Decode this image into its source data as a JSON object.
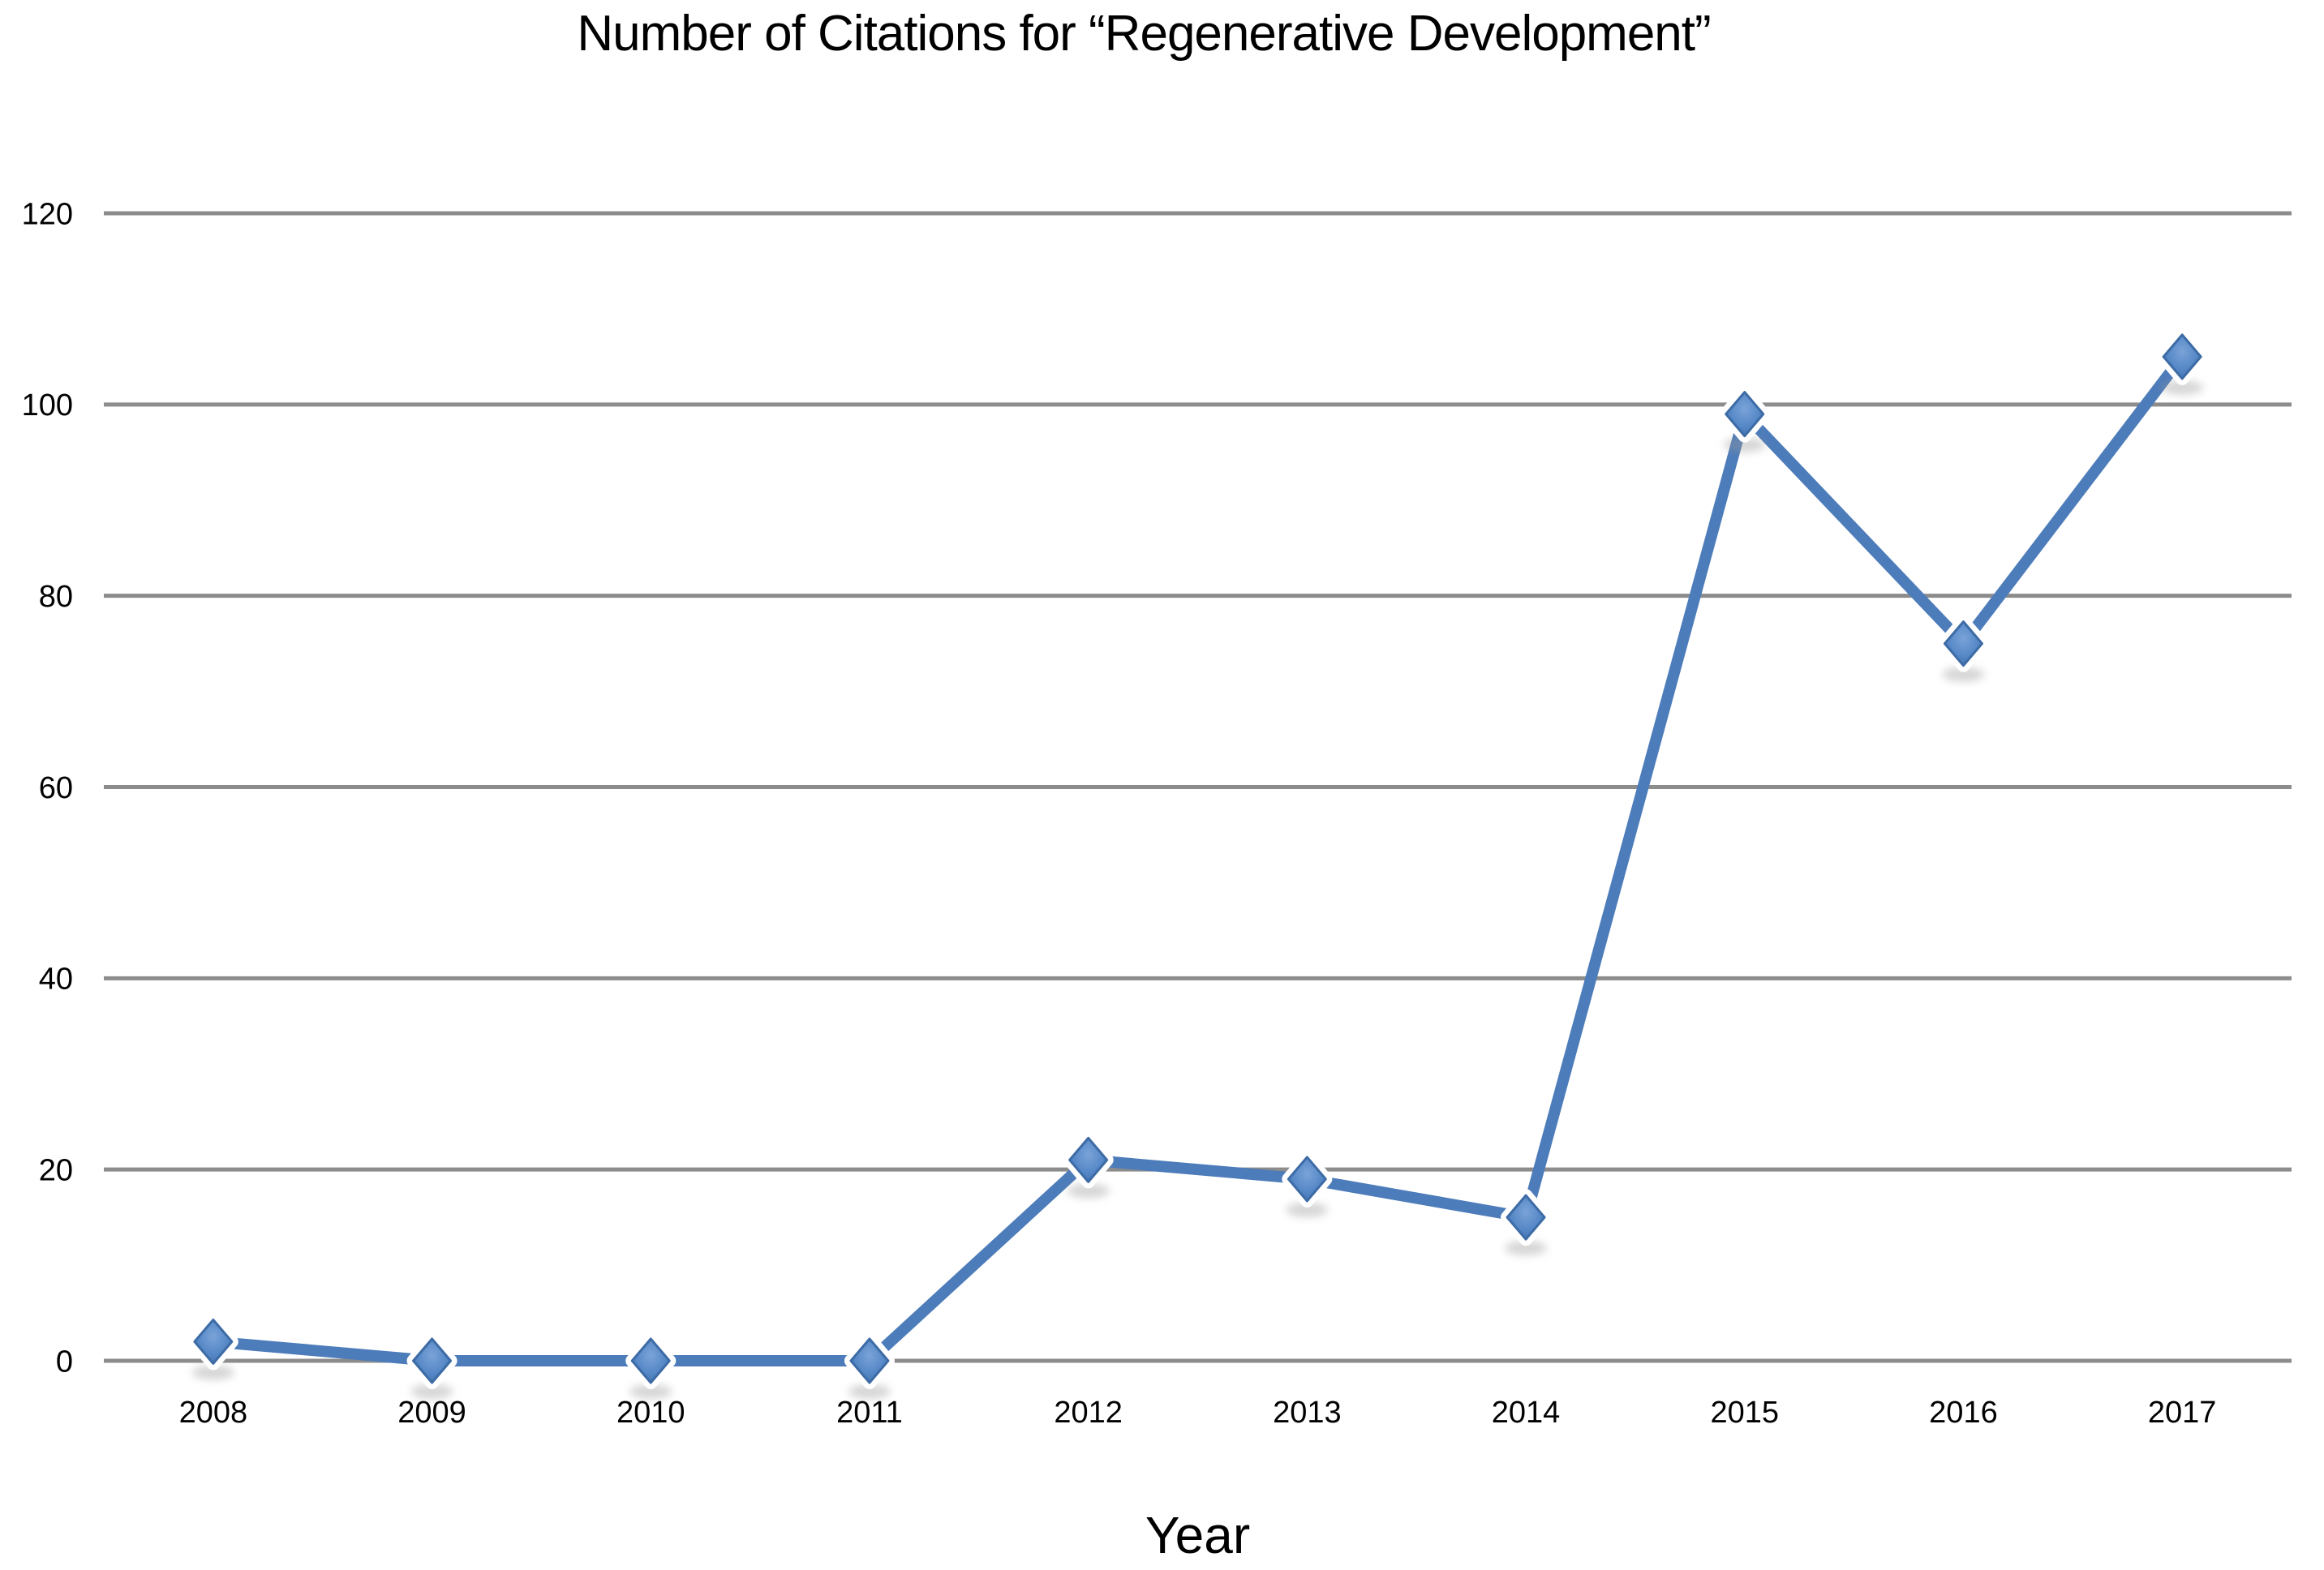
{
  "chart_data": {
    "type": "line",
    "title": "Number of Citations for “Regenerative Development”",
    "xlabel": "Year",
    "ylabel": "",
    "x": [
      "2008",
      "2009",
      "2010",
      "2011",
      "2012",
      "2013",
      "2014",
      "2015",
      "2016",
      "2017"
    ],
    "series": [
      {
        "name": "Number of Citations",
        "values": [
          2,
          0,
          0,
          0,
          21,
          19,
          15,
          99,
          75,
          105
        ]
      }
    ],
    "ylim": [
      0,
      120
    ],
    "yticks": [
      0,
      20,
      40,
      60,
      80,
      100,
      120
    ],
    "grid": true,
    "legend": false,
    "marker": "diamond"
  },
  "colors": {
    "line": "#4d7cba",
    "marker_fill": "#5587c6",
    "marker_fill_light": "#7aa3d8",
    "marker_edge": "#3d6ba6",
    "marker_halo": "#ffffff",
    "gridline": "#8c8c8c",
    "text": "#000000",
    "background": "#ffffff"
  }
}
